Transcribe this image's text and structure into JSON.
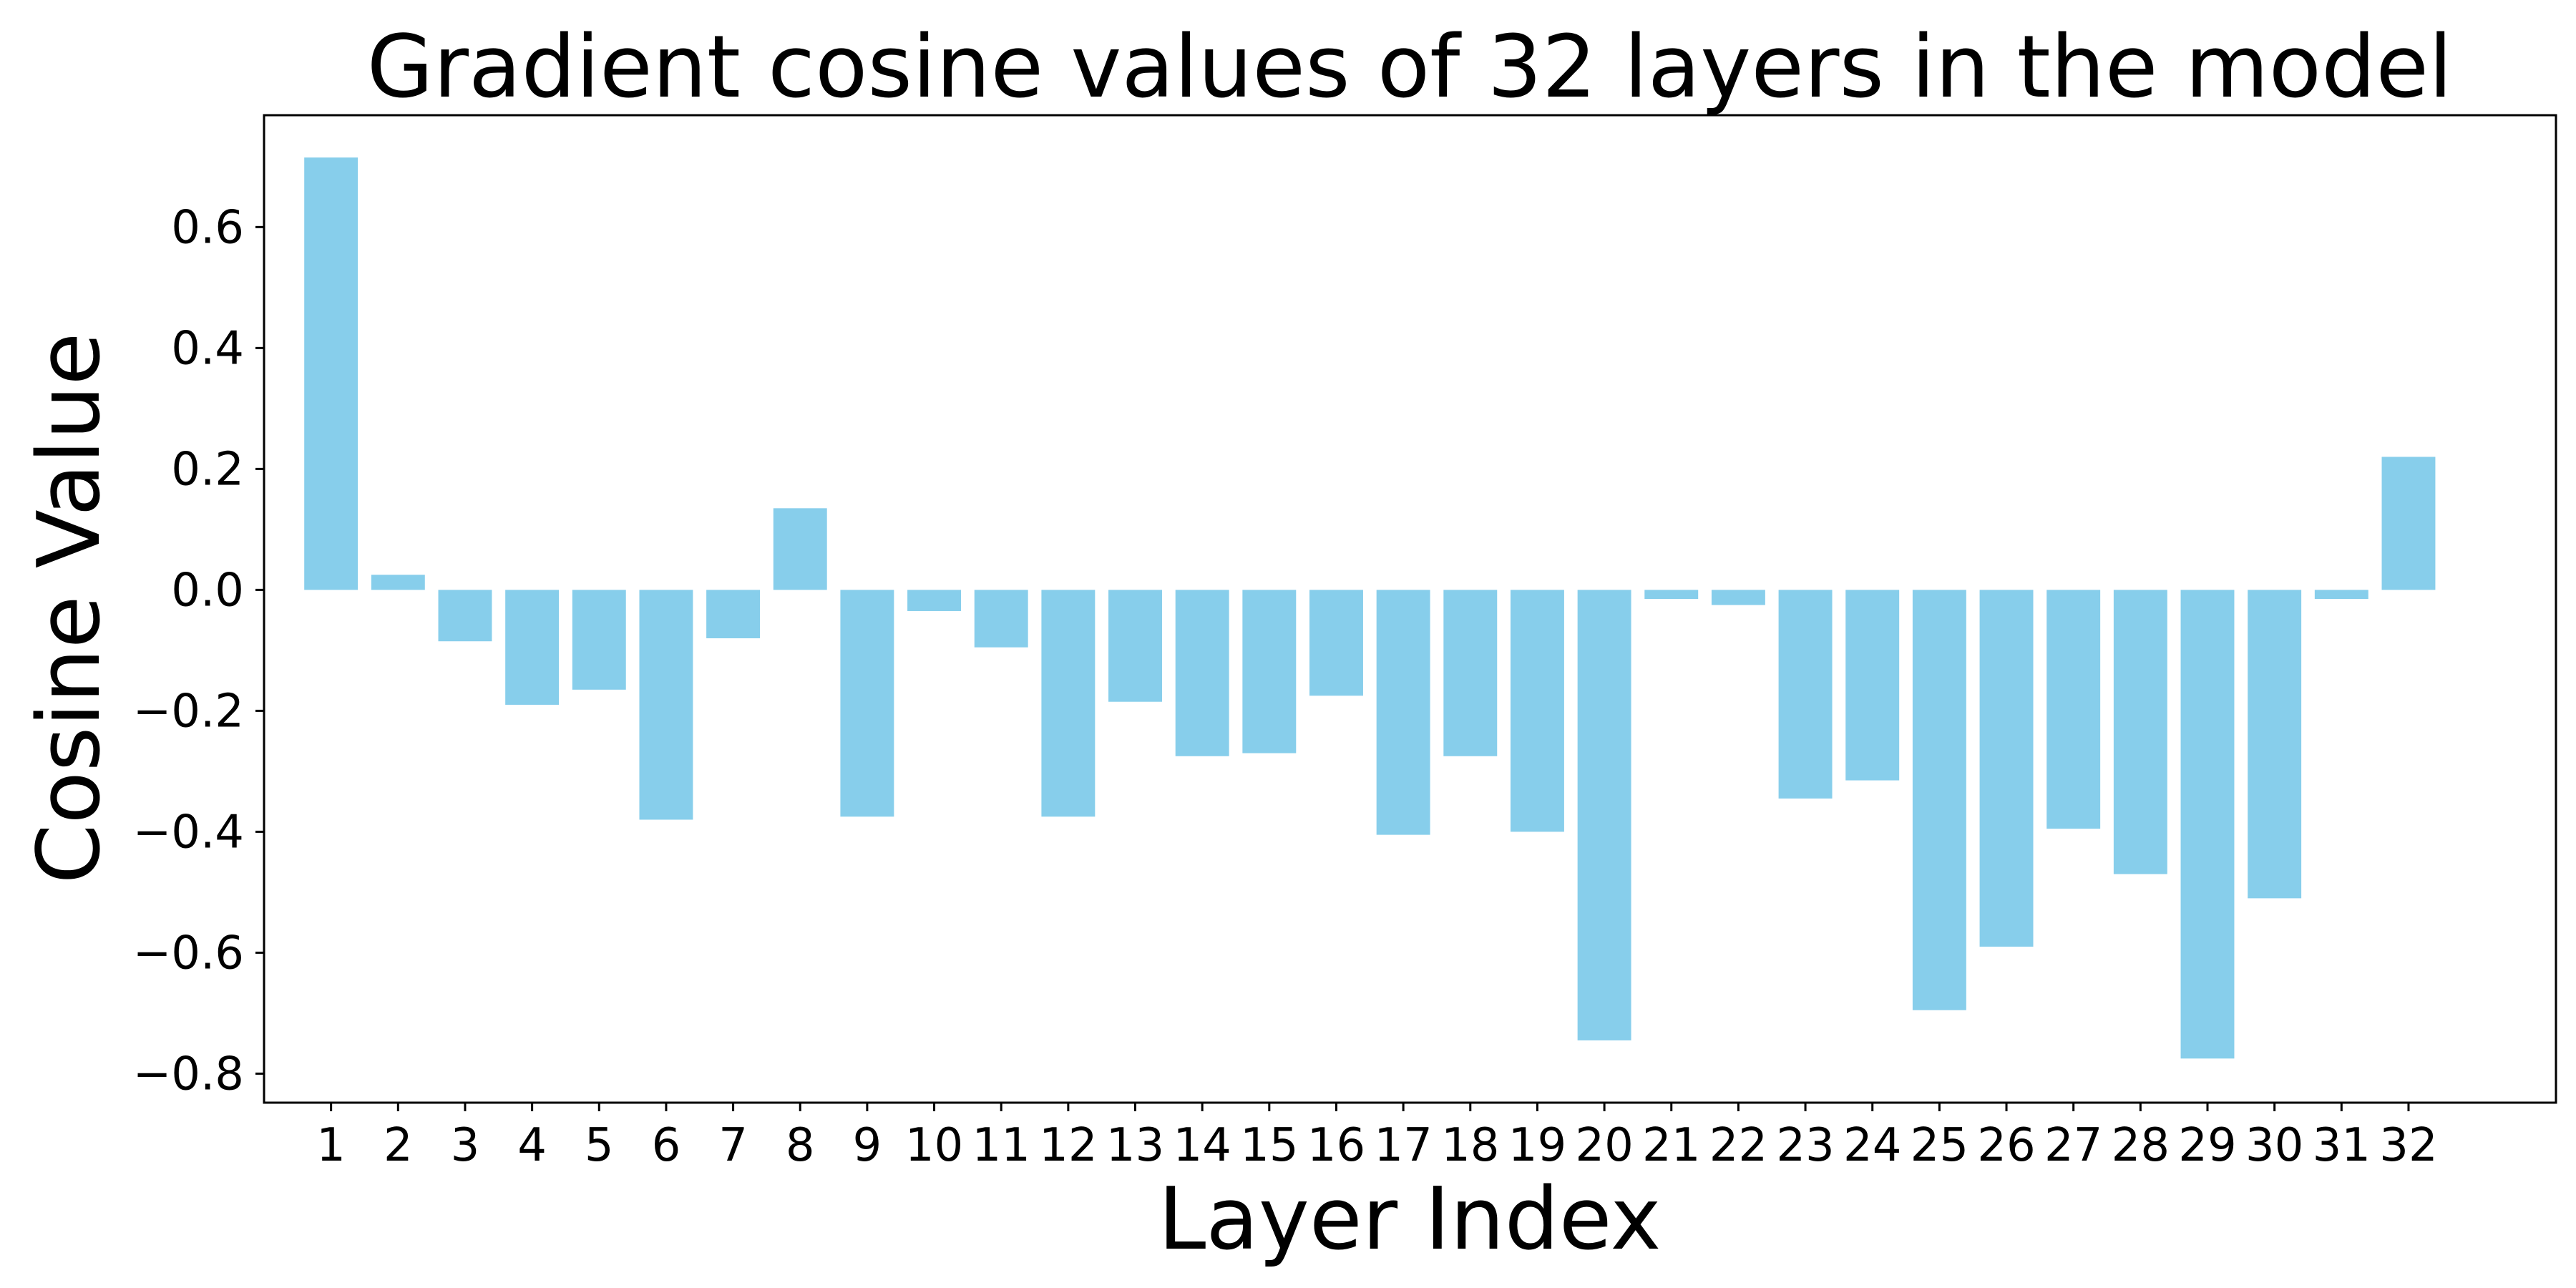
{
  "chart_data": {
    "type": "bar",
    "title": "Gradient cosine values of 32 layers in the model",
    "xlabel": "Layer Index",
    "ylabel": "Cosine Value",
    "categories": [
      "1",
      "2",
      "3",
      "4",
      "5",
      "6",
      "7",
      "8",
      "9",
      "10",
      "11",
      "12",
      "13",
      "14",
      "15",
      "16",
      "17",
      "18",
      "19",
      "20",
      "21",
      "22",
      "23",
      "24",
      "25",
      "26",
      "27",
      "28",
      "29",
      "30",
      "31",
      "32"
    ],
    "values": [
      0.715,
      0.025,
      -0.085,
      -0.19,
      -0.165,
      -0.38,
      -0.08,
      0.135,
      -0.375,
      -0.035,
      -0.095,
      -0.375,
      -0.185,
      -0.275,
      -0.27,
      -0.175,
      -0.405,
      -0.275,
      -0.4,
      -0.745,
      -0.015,
      -0.025,
      -0.345,
      -0.315,
      -0.695,
      -0.59,
      -0.395,
      -0.47,
      -0.775,
      -0.51,
      -0.015,
      0.22
    ],
    "ylim": [
      -0.848,
      0.785
    ],
    "xlim": [
      -1.0,
      33.2
    ],
    "yticks": [
      -0.8,
      -0.6,
      -0.4,
      -0.2,
      0.0,
      0.2,
      0.4,
      0.6
    ],
    "ytick_labels": [
      "−0.8",
      "−0.6",
      "−0.4",
      "−0.2",
      "0.0",
      "0.2",
      "0.4",
      "0.6"
    ],
    "grid": false,
    "bar_color": "#87CEEB"
  }
}
